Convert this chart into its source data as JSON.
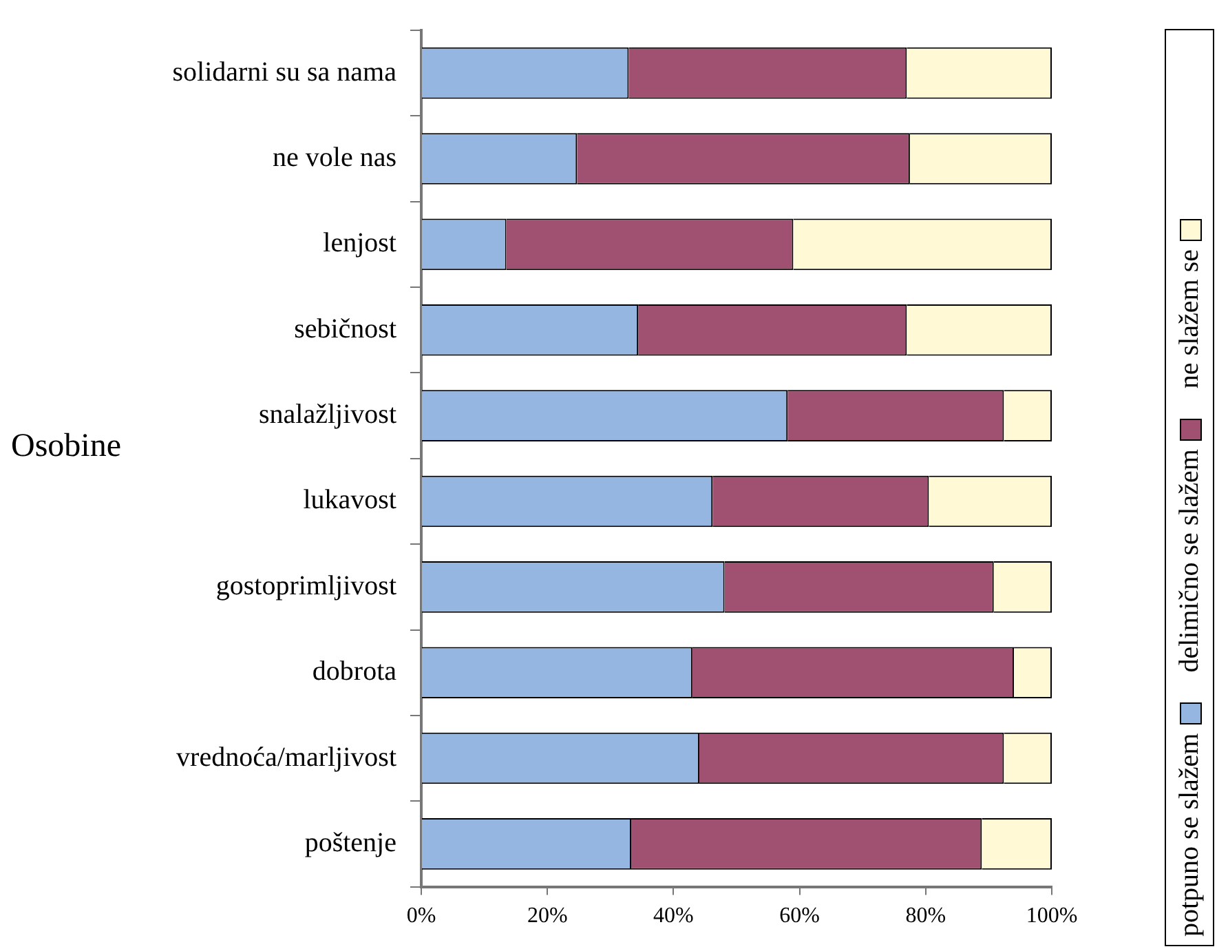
{
  "chart_data": {
    "type": "bar",
    "orientation": "horizontal",
    "stacked": true,
    "ylabel": "Osobine",
    "categories": [
      "solidarni su sa nama",
      "ne vole nas",
      "lenjost",
      "sebičnost",
      "snalažljivost",
      "lukavost",
      "gostoprimljivost",
      "dobrota",
      "vrednoća/marljivost",
      "poštenje"
    ],
    "series": [
      {
        "name": "potpuno se slažem",
        "color": "#95b6e0",
        "values": [
          32.9,
          24.7,
          13.5,
          34.4,
          58.1,
          46.2,
          48.1,
          43.0,
          44.1,
          33.3
        ]
      },
      {
        "name": "delimično se slažem",
        "color": "#a05070",
        "values": [
          44.1,
          52.8,
          45.5,
          42.6,
          34.3,
          34.3,
          42.7,
          51.0,
          48.3,
          55.6
        ]
      },
      {
        "name": "ne slažem se",
        "color": "#fff9d6",
        "values": [
          23.0,
          22.5,
          41.0,
          23.0,
          7.6,
          19.5,
          9.2,
          6.0,
          7.6,
          11.1
        ]
      }
    ],
    "xlim": [
      0,
      100
    ],
    "xticks": [
      {
        "value": 0,
        "label": "0%"
      },
      {
        "value": 20,
        "label": "20%"
      },
      {
        "value": 40,
        "label": "40%"
      },
      {
        "value": 60,
        "label": "60%"
      },
      {
        "value": 80,
        "label": "80%"
      },
      {
        "value": 100,
        "label": "100%"
      }
    ],
    "grid": false,
    "legend": "right"
  }
}
